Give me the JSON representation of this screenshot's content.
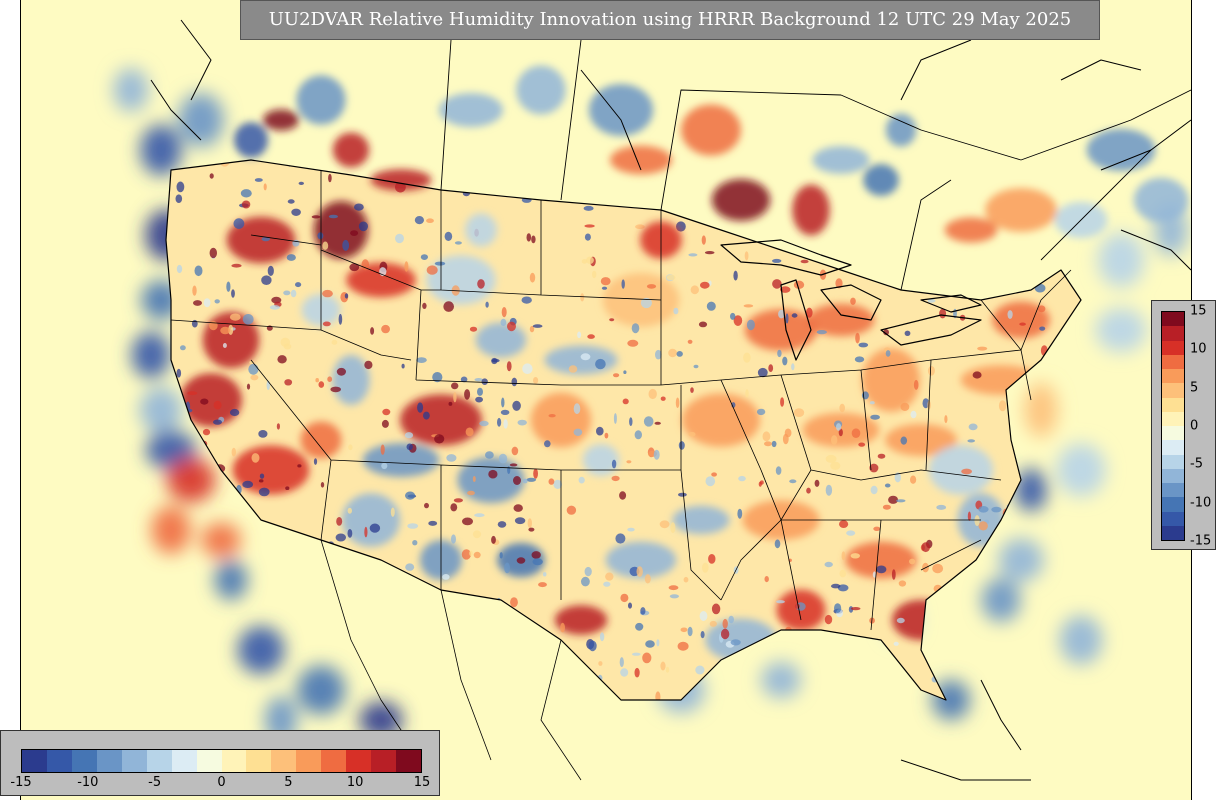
{
  "title": "UU2DVAR Relative Humidity Innovation using HRRR Background 12 UTC 29 May 2025",
  "colorbar": {
    "ticks": [
      "-15",
      "-10",
      "-5",
      "0",
      "5",
      "10",
      "15"
    ],
    "tick_values": [
      -15,
      -10,
      -5,
      0,
      5,
      10,
      15
    ],
    "range": [
      -15,
      15
    ],
    "colors": [
      "#2b3b8e",
      "#3558a8",
      "#4575b4",
      "#6a95c6",
      "#91b5d8",
      "#b7d4e8",
      "#dcecf4",
      "#f6fbe0",
      "#fff3b8",
      "#fee093",
      "#fdc07a",
      "#f99b5a",
      "#ef6c41",
      "#d73027",
      "#b81f26",
      "#7f0a1e"
    ]
  },
  "map": {
    "background_color": "#fefbc2",
    "linework_color": "#000000",
    "field": "relative-humidity-innovation"
  }
}
